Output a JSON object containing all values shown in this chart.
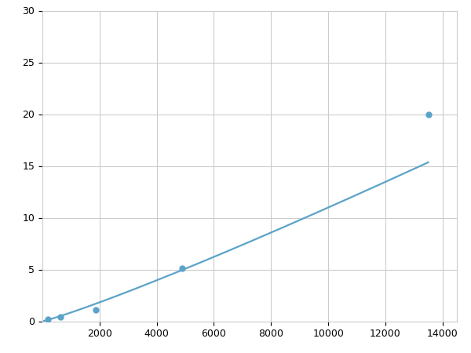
{
  "x_points": [
    200,
    625,
    1875,
    4875,
    13500
  ],
  "y_points": [
    0.2,
    0.4,
    1.1,
    5.1,
    20.0
  ],
  "line_color": "#5ba3c9",
  "marker_color": "#5ba3c9",
  "marker_size": 5,
  "line_width": 1.6,
  "xlim": [
    0,
    14500
  ],
  "ylim": [
    0,
    30
  ],
  "xticks": [
    2000,
    4000,
    6000,
    8000,
    10000,
    12000,
    14000
  ],
  "yticks": [
    0,
    5,
    10,
    15,
    20,
    25,
    30
  ],
  "grid_color": "#cccccc",
  "background_color": "#ffffff",
  "tick_label_fontsize": 9,
  "figsize": [
    6.0,
    4.5
  ],
  "dpi": 100
}
